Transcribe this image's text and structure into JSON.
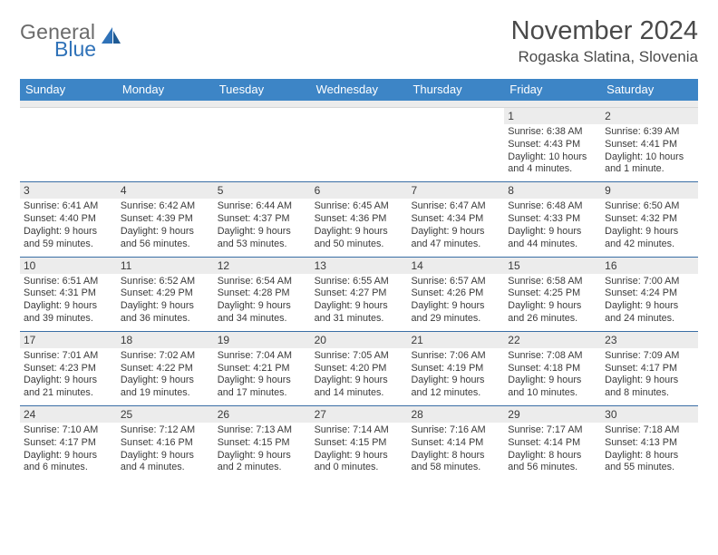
{
  "brand": {
    "line1": "General",
    "line2": "Blue"
  },
  "title": "November 2024",
  "location": "Rogaska Slatina, Slovenia",
  "colors": {
    "header_bar": "#3d85c6",
    "week_border": "#3a6ea5",
    "daynum_bg": "#ececec",
    "brand_blue": "#2f72b8",
    "text": "#3a3a3a"
  },
  "weekdays": [
    "Sunday",
    "Monday",
    "Tuesday",
    "Wednesday",
    "Thursday",
    "Friday",
    "Saturday"
  ],
  "weeks": [
    [
      null,
      null,
      null,
      null,
      null,
      {
        "n": "1",
        "sunrise": "Sunrise: 6:38 AM",
        "sunset": "Sunset: 4:43 PM",
        "day1": "Daylight: 10 hours",
        "day2": "and 4 minutes."
      },
      {
        "n": "2",
        "sunrise": "Sunrise: 6:39 AM",
        "sunset": "Sunset: 4:41 PM",
        "day1": "Daylight: 10 hours",
        "day2": "and 1 minute."
      }
    ],
    [
      {
        "n": "3",
        "sunrise": "Sunrise: 6:41 AM",
        "sunset": "Sunset: 4:40 PM",
        "day1": "Daylight: 9 hours",
        "day2": "and 59 minutes."
      },
      {
        "n": "4",
        "sunrise": "Sunrise: 6:42 AM",
        "sunset": "Sunset: 4:39 PM",
        "day1": "Daylight: 9 hours",
        "day2": "and 56 minutes."
      },
      {
        "n": "5",
        "sunrise": "Sunrise: 6:44 AM",
        "sunset": "Sunset: 4:37 PM",
        "day1": "Daylight: 9 hours",
        "day2": "and 53 minutes."
      },
      {
        "n": "6",
        "sunrise": "Sunrise: 6:45 AM",
        "sunset": "Sunset: 4:36 PM",
        "day1": "Daylight: 9 hours",
        "day2": "and 50 minutes."
      },
      {
        "n": "7",
        "sunrise": "Sunrise: 6:47 AM",
        "sunset": "Sunset: 4:34 PM",
        "day1": "Daylight: 9 hours",
        "day2": "and 47 minutes."
      },
      {
        "n": "8",
        "sunrise": "Sunrise: 6:48 AM",
        "sunset": "Sunset: 4:33 PM",
        "day1": "Daylight: 9 hours",
        "day2": "and 44 minutes."
      },
      {
        "n": "9",
        "sunrise": "Sunrise: 6:50 AM",
        "sunset": "Sunset: 4:32 PM",
        "day1": "Daylight: 9 hours",
        "day2": "and 42 minutes."
      }
    ],
    [
      {
        "n": "10",
        "sunrise": "Sunrise: 6:51 AM",
        "sunset": "Sunset: 4:31 PM",
        "day1": "Daylight: 9 hours",
        "day2": "and 39 minutes."
      },
      {
        "n": "11",
        "sunrise": "Sunrise: 6:52 AM",
        "sunset": "Sunset: 4:29 PM",
        "day1": "Daylight: 9 hours",
        "day2": "and 36 minutes."
      },
      {
        "n": "12",
        "sunrise": "Sunrise: 6:54 AM",
        "sunset": "Sunset: 4:28 PM",
        "day1": "Daylight: 9 hours",
        "day2": "and 34 minutes."
      },
      {
        "n": "13",
        "sunrise": "Sunrise: 6:55 AM",
        "sunset": "Sunset: 4:27 PM",
        "day1": "Daylight: 9 hours",
        "day2": "and 31 minutes."
      },
      {
        "n": "14",
        "sunrise": "Sunrise: 6:57 AM",
        "sunset": "Sunset: 4:26 PM",
        "day1": "Daylight: 9 hours",
        "day2": "and 29 minutes."
      },
      {
        "n": "15",
        "sunrise": "Sunrise: 6:58 AM",
        "sunset": "Sunset: 4:25 PM",
        "day1": "Daylight: 9 hours",
        "day2": "and 26 minutes."
      },
      {
        "n": "16",
        "sunrise": "Sunrise: 7:00 AM",
        "sunset": "Sunset: 4:24 PM",
        "day1": "Daylight: 9 hours",
        "day2": "and 24 minutes."
      }
    ],
    [
      {
        "n": "17",
        "sunrise": "Sunrise: 7:01 AM",
        "sunset": "Sunset: 4:23 PM",
        "day1": "Daylight: 9 hours",
        "day2": "and 21 minutes."
      },
      {
        "n": "18",
        "sunrise": "Sunrise: 7:02 AM",
        "sunset": "Sunset: 4:22 PM",
        "day1": "Daylight: 9 hours",
        "day2": "and 19 minutes."
      },
      {
        "n": "19",
        "sunrise": "Sunrise: 7:04 AM",
        "sunset": "Sunset: 4:21 PM",
        "day1": "Daylight: 9 hours",
        "day2": "and 17 minutes."
      },
      {
        "n": "20",
        "sunrise": "Sunrise: 7:05 AM",
        "sunset": "Sunset: 4:20 PM",
        "day1": "Daylight: 9 hours",
        "day2": "and 14 minutes."
      },
      {
        "n": "21",
        "sunrise": "Sunrise: 7:06 AM",
        "sunset": "Sunset: 4:19 PM",
        "day1": "Daylight: 9 hours",
        "day2": "and 12 minutes."
      },
      {
        "n": "22",
        "sunrise": "Sunrise: 7:08 AM",
        "sunset": "Sunset: 4:18 PM",
        "day1": "Daylight: 9 hours",
        "day2": "and 10 minutes."
      },
      {
        "n": "23",
        "sunrise": "Sunrise: 7:09 AM",
        "sunset": "Sunset: 4:17 PM",
        "day1": "Daylight: 9 hours",
        "day2": "and 8 minutes."
      }
    ],
    [
      {
        "n": "24",
        "sunrise": "Sunrise: 7:10 AM",
        "sunset": "Sunset: 4:17 PM",
        "day1": "Daylight: 9 hours",
        "day2": "and 6 minutes."
      },
      {
        "n": "25",
        "sunrise": "Sunrise: 7:12 AM",
        "sunset": "Sunset: 4:16 PM",
        "day1": "Daylight: 9 hours",
        "day2": "and 4 minutes."
      },
      {
        "n": "26",
        "sunrise": "Sunrise: 7:13 AM",
        "sunset": "Sunset: 4:15 PM",
        "day1": "Daylight: 9 hours",
        "day2": "and 2 minutes."
      },
      {
        "n": "27",
        "sunrise": "Sunrise: 7:14 AM",
        "sunset": "Sunset: 4:15 PM",
        "day1": "Daylight: 9 hours",
        "day2": "and 0 minutes."
      },
      {
        "n": "28",
        "sunrise": "Sunrise: 7:16 AM",
        "sunset": "Sunset: 4:14 PM",
        "day1": "Daylight: 8 hours",
        "day2": "and 58 minutes."
      },
      {
        "n": "29",
        "sunrise": "Sunrise: 7:17 AM",
        "sunset": "Sunset: 4:14 PM",
        "day1": "Daylight: 8 hours",
        "day2": "and 56 minutes."
      },
      {
        "n": "30",
        "sunrise": "Sunrise: 7:18 AM",
        "sunset": "Sunset: 4:13 PM",
        "day1": "Daylight: 8 hours",
        "day2": "and 55 minutes."
      }
    ]
  ]
}
